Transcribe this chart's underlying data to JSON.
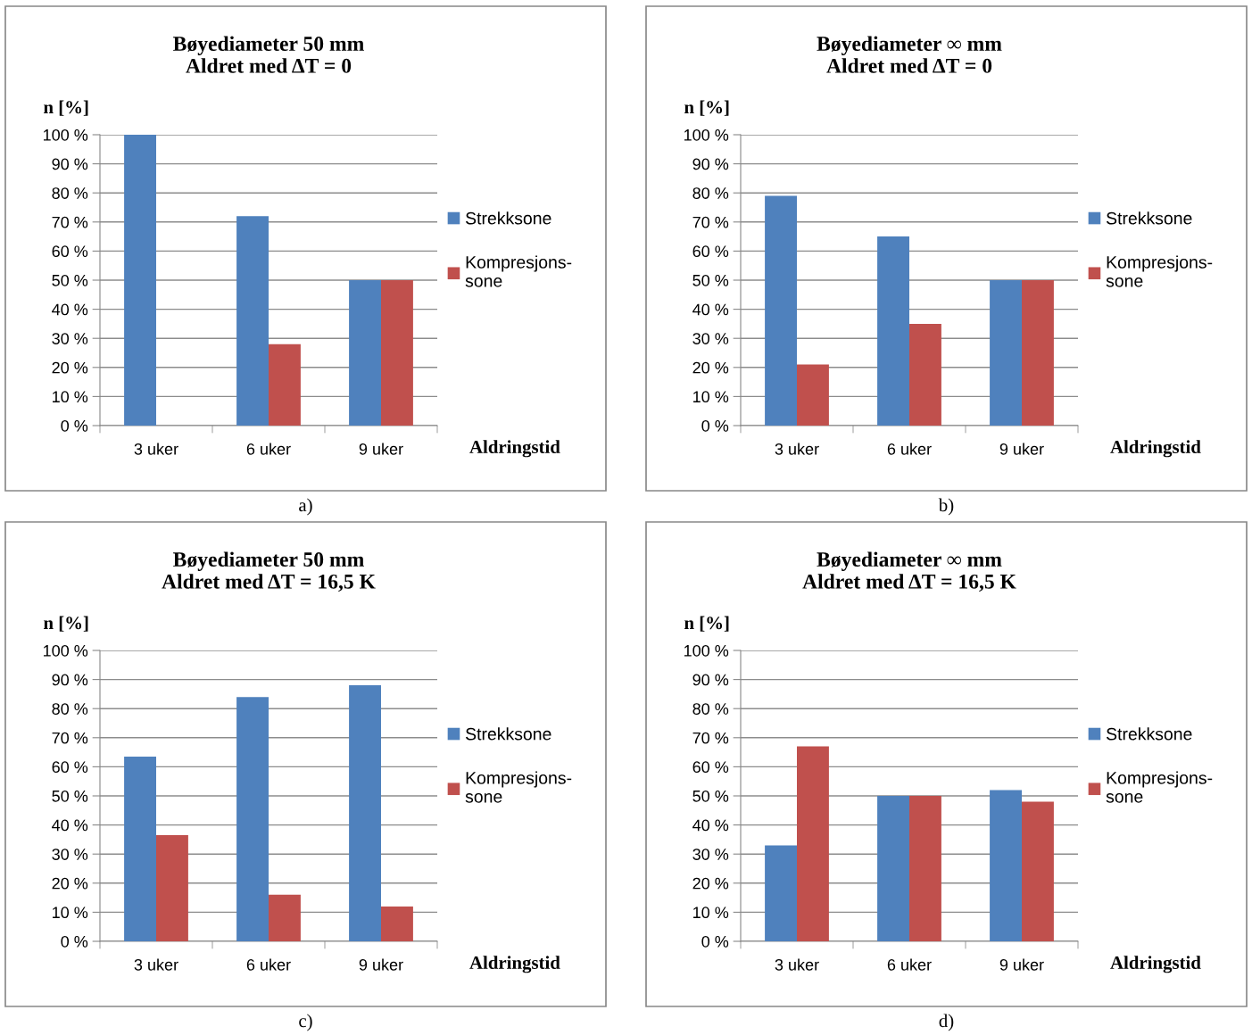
{
  "chart_data": [
    {
      "type": "bar",
      "title": "Bøyediameter 50 mm\nAldret med ΔT = 0",
      "ylabel": "n [%]",
      "xlabel": "Aldringstid",
      "categories": [
        "3 uker",
        "6 uker",
        "9 uker"
      ],
      "series": [
        {
          "name": "Strekksone",
          "color": "#4f81bd",
          "values": [
            100,
            72,
            50
          ]
        },
        {
          "name": "Kompresjons-\nsone",
          "color": "#c0504d",
          "values": [
            0,
            28,
            50
          ]
        }
      ],
      "ylim": [
        0,
        100
      ],
      "yticks": [
        {
          "value": 0,
          "label": "0 %"
        },
        {
          "value": 10,
          "label": "10 %"
        },
        {
          "value": 20,
          "label": "20 %"
        },
        {
          "value": 30,
          "label": "30 %"
        },
        {
          "value": 40,
          "label": "40 %"
        },
        {
          "value": 50,
          "label": "50 %"
        },
        {
          "value": 60,
          "label": "60 %"
        },
        {
          "value": 70,
          "label": "70 %"
        },
        {
          "value": 80,
          "label": "80 %"
        },
        {
          "value": 90,
          "label": "90 %"
        },
        {
          "value": 100,
          "label": "100 %"
        }
      ],
      "grid": "y",
      "legend": "right",
      "annotations": [
        "a)"
      ]
    },
    {
      "type": "bar",
      "title": "Bøyediameter ∞ mm\nAldret med ΔT = 0",
      "ylabel": "n [%]",
      "xlabel": "Aldringstid",
      "categories": [
        "3 uker",
        "6 uker",
        "9 uker"
      ],
      "series": [
        {
          "name": "Strekksone",
          "color": "#4f81bd",
          "values": [
            79,
            65,
            50
          ]
        },
        {
          "name": "Kompresjons-\nsone",
          "color": "#c0504d",
          "values": [
            21,
            35,
            50
          ]
        }
      ],
      "ylim": [
        0,
        100
      ],
      "yticks": [
        {
          "value": 0,
          "label": "0 %"
        },
        {
          "value": 10,
          "label": "10 %"
        },
        {
          "value": 20,
          "label": "20 %"
        },
        {
          "value": 30,
          "label": "30 %"
        },
        {
          "value": 40,
          "label": "40 %"
        },
        {
          "value": 50,
          "label": "50 %"
        },
        {
          "value": 60,
          "label": "60 %"
        },
        {
          "value": 70,
          "label": "70 %"
        },
        {
          "value": 80,
          "label": "80 %"
        },
        {
          "value": 90,
          "label": "90 %"
        },
        {
          "value": 100,
          "label": "100 %"
        }
      ],
      "grid": "y",
      "legend": "right",
      "annotations": [
        "b)"
      ]
    },
    {
      "type": "bar",
      "title": "Bøyediameter 50 mm\nAldret med ΔT = 16,5 K",
      "ylabel": "n [%]",
      "xlabel": "Aldringstid",
      "categories": [
        "3 uker",
        "6 uker",
        "9 uker"
      ],
      "series": [
        {
          "name": "Strekksone",
          "color": "#4f81bd",
          "values": [
            63.5,
            84,
            88
          ]
        },
        {
          "name": "Kompresjons-\nsone",
          "color": "#c0504d",
          "values": [
            36.5,
            16,
            12
          ]
        }
      ],
      "ylim": [
        0,
        100
      ],
      "yticks": [
        {
          "value": 0,
          "label": "0 %"
        },
        {
          "value": 10,
          "label": "10 %"
        },
        {
          "value": 20,
          "label": "20 %"
        },
        {
          "value": 30,
          "label": "30 %"
        },
        {
          "value": 40,
          "label": "40 %"
        },
        {
          "value": 50,
          "label": "50 %"
        },
        {
          "value": 60,
          "label": "60 %"
        },
        {
          "value": 70,
          "label": "70 %"
        },
        {
          "value": 80,
          "label": "80 %"
        },
        {
          "value": 90,
          "label": "90 %"
        },
        {
          "value": 100,
          "label": "100 %"
        }
      ],
      "grid": "y",
      "legend": "right",
      "annotations": [
        "c)"
      ]
    },
    {
      "type": "bar",
      "title": "Bøyediameter ∞ mm\nAldret med ΔT = 16,5 K",
      "ylabel": "n [%]",
      "xlabel": "Aldringstid",
      "categories": [
        "3 uker",
        "6 uker",
        "9 uker"
      ],
      "series": [
        {
          "name": "Strekksone",
          "color": "#4f81bd",
          "values": [
            33,
            50,
            52
          ]
        },
        {
          "name": "Kompresjons-\nsone",
          "color": "#c0504d",
          "values": [
            67,
            50,
            48
          ]
        }
      ],
      "ylim": [
        0,
        100
      ],
      "yticks": [
        {
          "value": 0,
          "label": "0 %"
        },
        {
          "value": 10,
          "label": "10 %"
        },
        {
          "value": 20,
          "label": "20 %"
        },
        {
          "value": 30,
          "label": "30 %"
        },
        {
          "value": 40,
          "label": "40 %"
        },
        {
          "value": 50,
          "label": "50 %"
        },
        {
          "value": 60,
          "label": "60 %"
        },
        {
          "value": 70,
          "label": "70 %"
        },
        {
          "value": 80,
          "label": "80 %"
        },
        {
          "value": 90,
          "label": "90 %"
        },
        {
          "value": 100,
          "label": "100 %"
        }
      ],
      "grid": "y",
      "legend": "right",
      "annotations": [
        "d)"
      ]
    }
  ]
}
